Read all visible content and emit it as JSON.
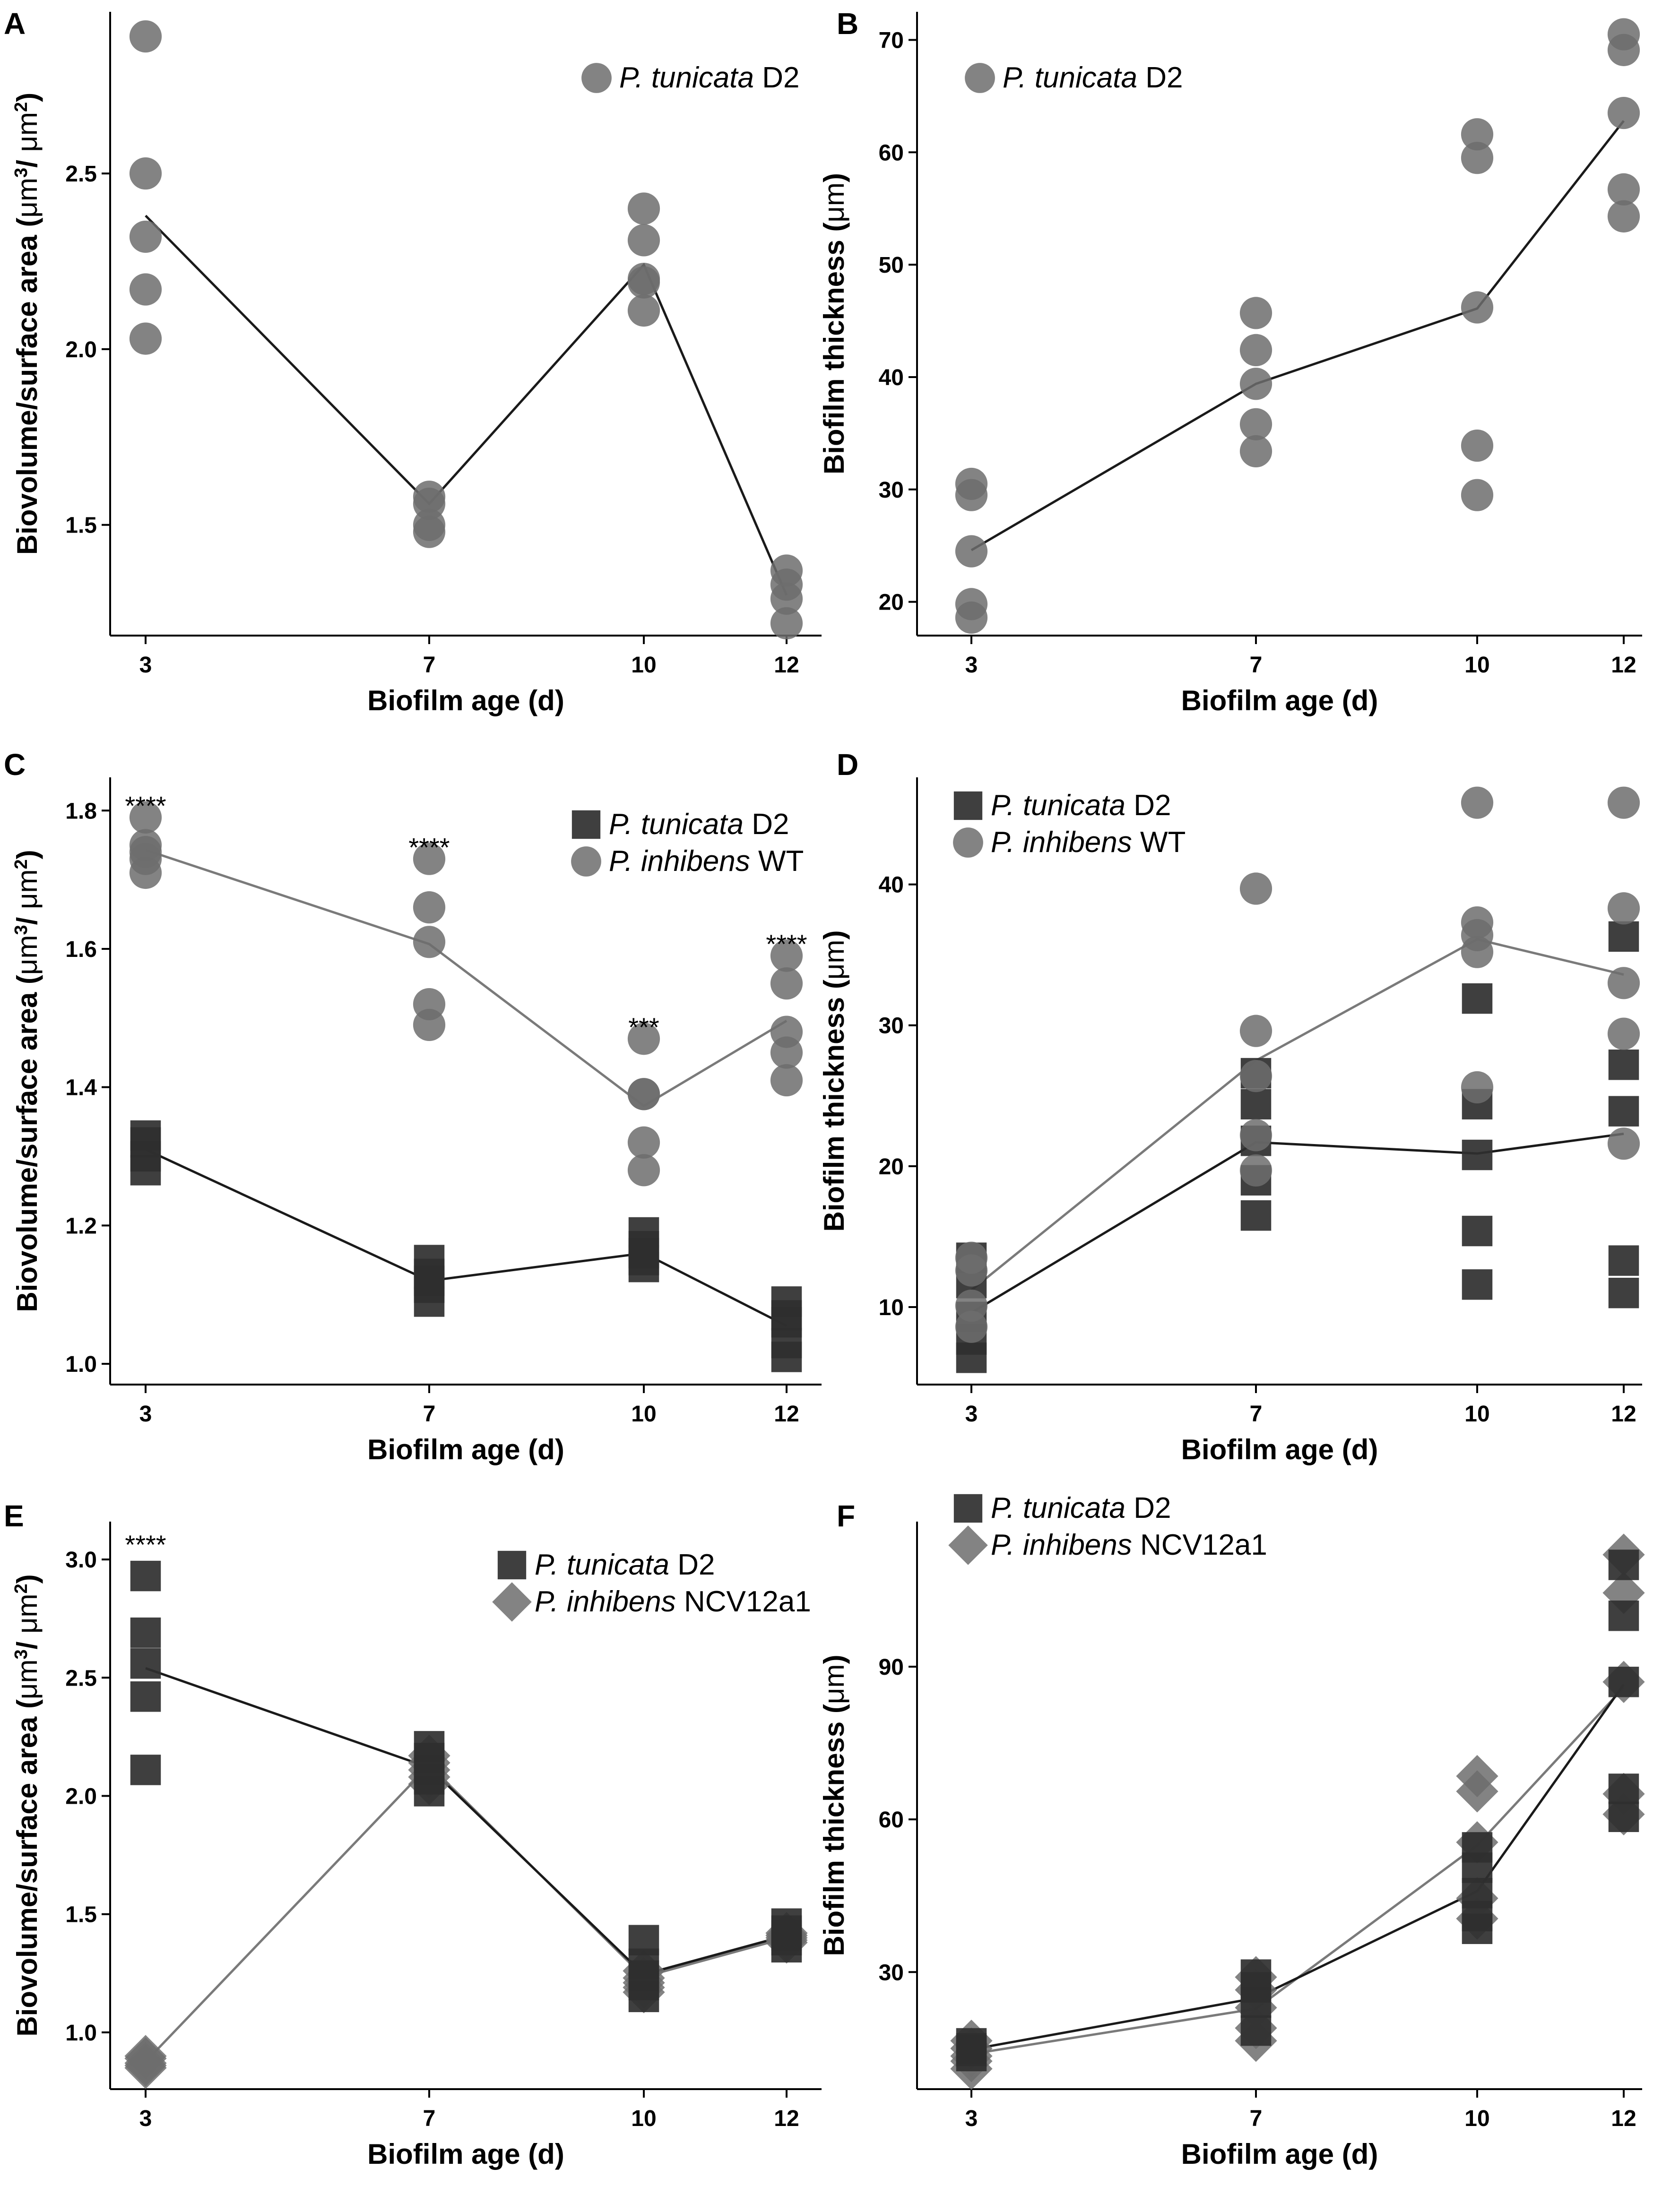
{
  "figure": {
    "colors": {
      "tunicata_square": "#2f2f2f",
      "gray_marker": "#6d6d6d",
      "tunicata_line": "#1a1a1a",
      "inhibens_line": "#7a7a7a"
    }
  },
  "chart_data": [
    {
      "id": "A",
      "panel_label": "A",
      "type": "scatter",
      "xlabel": "Biofilm age (d)",
      "ylabel_parts": [
        "Biovolume/surface area (",
        "μm",
        "3",
        "/ ",
        "μm",
        "2",
        ")"
      ],
      "x_categories": [
        3,
        7,
        10,
        12
      ],
      "ylim": [
        1.185,
        2.96
      ],
      "yticks": [
        1.5,
        2.0,
        2.5
      ],
      "ytick_labels": [
        "1.5",
        "2.0",
        "2.5"
      ],
      "legend": [
        {
          "marker": "circle",
          "name_italic": "P. tunicata",
          "name_rest": " D2"
        }
      ],
      "series": [
        {
          "name": "P. tunicata D2",
          "marker": "circle",
          "color": "#6d6d6d",
          "line_color": "#1a1a1a",
          "points": {
            "3": [
              2.89,
              2.5,
              2.32,
              2.17,
              2.03
            ],
            "7": [
              1.58,
              1.56,
              1.5,
              1.48
            ],
            "10": [
              2.4,
              2.31,
              2.2,
              2.19,
              2.11
            ],
            "12": [
              1.37,
              1.33,
              1.29,
              1.22
            ]
          },
          "means": {
            "3": 2.38,
            "7": 1.56,
            "10": 2.24,
            "12": 1.3
          }
        }
      ],
      "annotations": []
    },
    {
      "id": "B",
      "panel_label": "B",
      "type": "scatter",
      "xlabel": "Biofilm age (d)",
      "ylabel_parts": [
        "Biofilm thickness (",
        "μm",
        "",
        "",
        "",
        "",
        ")"
      ],
      "x_categories": [
        3,
        7,
        10,
        12
      ],
      "ylim": [
        17.0,
        72.5
      ],
      "yticks": [
        20,
        30,
        40,
        50,
        60,
        70
      ],
      "ytick_labels": [
        "20",
        "30",
        "40",
        "50",
        "60",
        "70"
      ],
      "legend": [
        {
          "marker": "circle",
          "name_italic": "P. tunicata",
          "name_rest": " D2"
        }
      ],
      "series": [
        {
          "name": "P. tunicata D2",
          "marker": "circle",
          "color": "#6d6d6d",
          "line_color": "#1a1a1a",
          "points": {
            "3": [
              30.5,
              29.5,
              24.5,
              19.8,
              18.6
            ],
            "7": [
              45.7,
              42.4,
              39.4,
              35.8,
              33.4
            ],
            "10": [
              61.6,
              59.5,
              46.2,
              33.9,
              29.5
            ],
            "12": [
              70.5,
              69.1,
              63.5,
              56.7,
              54.3
            ]
          },
          "means": {
            "3": 24.6,
            "7": 39.4,
            "10": 46.1,
            "12": 62.8
          }
        }
      ],
      "annotations": []
    },
    {
      "id": "C",
      "panel_label": "C",
      "type": "scatter",
      "xlabel": "Biofilm age (d)",
      "ylabel_parts": [
        "Biovolume/surface area (",
        "μm",
        "3",
        "/ ",
        "μm",
        "2",
        ")"
      ],
      "x_categories": [
        3,
        7,
        10,
        12
      ],
      "ylim": [
        0.97,
        1.848
      ],
      "yticks": [
        1.0,
        1.2,
        1.4,
        1.6,
        1.8
      ],
      "ytick_labels": [
        "1.0",
        "1.2",
        "1.4",
        "1.6",
        "1.8"
      ],
      "legend": [
        {
          "marker": "square",
          "name_italic": "P. tunicata",
          "name_rest": " D2"
        },
        {
          "marker": "circle",
          "name_italic": "P. inhibens",
          "name_rest": " WT"
        }
      ],
      "series": [
        {
          "name": "P. tunicata D2",
          "marker": "square",
          "color": "#2f2f2f",
          "line_color": "#1a1a1a",
          "points": {
            "3": [
              1.33,
              1.32,
              1.3,
              1.28
            ],
            "7": [
              1.15,
              1.13,
              1.12,
              1.11,
              1.09
            ],
            "10": [
              1.19,
              1.17,
              1.16,
              1.15,
              1.14
            ],
            "12": [
              1.09,
              1.07,
              1.06,
              1.03,
              1.01
            ]
          },
          "means": {
            "3": 1.31,
            "7": 1.12,
            "10": 1.16,
            "12": 1.055
          }
        },
        {
          "name": "P. inhibens WT",
          "marker": "circle",
          "color": "#6d6d6d",
          "line_color": "#7a7a7a",
          "points": {
            "3": [
              1.79,
              1.75,
              1.74,
              1.73,
              1.71
            ],
            "7": [
              1.73,
              1.66,
              1.61,
              1.52,
              1.49
            ],
            "10": [
              1.47,
              1.39,
              1.39,
              1.32,
              1.28
            ],
            "12": [
              1.59,
              1.55,
              1.48,
              1.45,
              1.41
            ]
          },
          "means": {
            "3": 1.743,
            "7": 1.607,
            "10": 1.373,
            "12": 1.496
          }
        }
      ],
      "annotations": [
        {
          "x": 3,
          "y": 1.806,
          "text": "****"
        },
        {
          "x": 7,
          "y": 1.746,
          "text": "****"
        },
        {
          "x": 10,
          "y": 1.486,
          "text": "***"
        },
        {
          "x": 12,
          "y": 1.606,
          "text": "****"
        }
      ]
    },
    {
      "id": "D",
      "panel_label": "D",
      "type": "scatter",
      "xlabel": "Biofilm age (d)",
      "ylabel_parts": [
        "Biofilm thickness (",
        "μm",
        "",
        "",
        "",
        "",
        ")"
      ],
      "x_categories": [
        3,
        7,
        10,
        12
      ],
      "ylim": [
        4.5,
        47.6
      ],
      "yticks": [
        10,
        20,
        30,
        40
      ],
      "ytick_labels": [
        "10",
        "20",
        "30",
        "40"
      ],
      "legend": [
        {
          "marker": "square",
          "name_italic": "P. tunicata",
          "name_rest": " D2"
        },
        {
          "marker": "circle",
          "name_italic": "P. inhibens",
          "name_rest": " WT"
        }
      ],
      "series": [
        {
          "name": "P. tunicata D2",
          "marker": "square",
          "color": "#2f2f2f",
          "line_color": "#1a1a1a",
          "points": {
            "3": [
              13.5,
              11.7,
              9.3,
              7.7,
              6.4
            ],
            "7": [
              26.6,
              24.4,
              21.8,
              19.0,
              16.5
            ],
            "10": [
              31.9,
              24.4,
              20.8,
              15.4,
              11.6
            ],
            "12": [
              36.3,
              27.2,
              23.9,
              13.3,
              11.0
            ]
          },
          "means": {
            "3": 9.6,
            "7": 21.7,
            "10": 20.9,
            "12": 22.3
          }
        },
        {
          "name": "P. inhibens WT",
          "marker": "circle",
          "color": "#6d6d6d",
          "line_color": "#7a7a7a",
          "points": {
            "3": [
              13.5,
              12.6,
              10.1,
              8.6
            ],
            "7": [
              39.7,
              29.6,
              26.4,
              22.2,
              19.7
            ],
            "10": [
              45.8,
              37.3,
              36.4,
              35.2,
              25.6
            ],
            "12": [
              45.8,
              38.3,
              33.0,
              29.4,
              21.6
            ]
          },
          "means": {
            "3": 11.2,
            "7": 27.5,
            "10": 36.1,
            "12": 33.6
          }
        }
      ],
      "annotations": []
    },
    {
      "id": "E",
      "panel_label": "E",
      "type": "scatter",
      "xlabel": "Biofilm age (d)",
      "ylabel_parts": [
        "Biovolume/surface area (",
        "μm",
        "3",
        "/ ",
        "μm",
        "2",
        ")"
      ],
      "x_categories": [
        3,
        7,
        10,
        12
      ],
      "ylim": [
        0.76,
        3.16
      ],
      "yticks": [
        1.0,
        1.5,
        2.0,
        2.5,
        3.0
      ],
      "ytick_labels": [
        "1.0",
        "1.5",
        "2.0",
        "2.5",
        "3.0"
      ],
      "legend": [
        {
          "marker": "square",
          "name_italic": "P. tunicata",
          "name_rest": " D2"
        },
        {
          "marker": "diamond",
          "name_italic": "P. inhibens",
          "name_rest": " NCV12a1"
        }
      ],
      "series": [
        {
          "name": "P. inhibens NCV12a1",
          "marker": "diamond",
          "color": "#6d6d6d",
          "line_color": "#7a7a7a",
          "points": {
            "3": [
              0.9,
              0.89,
              0.87,
              0.86,
              0.85
            ],
            "7": [
              2.17,
              2.14,
              2.11,
              2.08,
              2.05
            ],
            "10": [
              1.26,
              1.23,
              1.21,
              1.19,
              1.17
            ],
            "12": [
              1.42,
              1.41,
              1.4,
              1.39,
              1.38
            ]
          },
          "means": {
            "3": 0.876,
            "7": 2.13,
            "10": 1.235,
            "12": 1.4
          }
        },
        {
          "name": "P. tunicata D2",
          "marker": "square",
          "color": "#2f2f2f",
          "line_color": "#1a1a1a",
          "points": {
            "3": [
              2.93,
              2.69,
              2.56,
              2.42,
              2.11
            ],
            "7": [
              2.21,
              2.16,
              2.11,
              2.07,
              2.02
            ],
            "10": [
              1.39,
              1.29,
              1.24,
              1.2,
              1.15
            ],
            "12": [
              1.46,
              1.43,
              1.41,
              1.39,
              1.36
            ]
          },
          "means": {
            "3": 2.54,
            "7": 2.12,
            "10": 1.245,
            "12": 1.41
          }
        }
      ],
      "annotations": [
        {
          "x": 3,
          "y": 3.06,
          "text": "****"
        }
      ]
    },
    {
      "id": "F",
      "panel_label": "F",
      "type": "scatter",
      "xlabel": "Biofilm age (d)",
      "ylabel_parts": [
        "Biofilm thickness (",
        "μm",
        "",
        "",
        "",
        "",
        ")"
      ],
      "x_categories": [
        3,
        7,
        10,
        12
      ],
      "ylim": [
        7.0,
        118.5
      ],
      "yticks": [
        30,
        60,
        90
      ],
      "ytick_labels": [
        "30",
        "60",
        "90"
      ],
      "legend": [
        {
          "marker": "square",
          "name_italic": "P. tunicata",
          "name_rest": " D2"
        },
        {
          "marker": "diamond",
          "name_italic": "P. inhibens",
          "name_rest": " NCV12a1"
        }
      ],
      "series": [
        {
          "name": "P. inhibens NCV12a1",
          "marker": "diamond",
          "color": "#6d6d6d",
          "line_color": "#7a7a7a",
          "points": {
            "3": [
              16.5,
              15.0,
              13.5,
              12.5,
              11.0
            ],
            "7": [
              29.0,
              26.5,
              23.0,
              19.0,
              16.5
            ],
            "10": [
              68.5,
              65.5,
              55.5,
              44.5,
              40.5
            ],
            "12": [
              112.0,
              104.5,
              87.0,
              65.0,
              61.0
            ]
          },
          "means": {
            "3": 13.9,
            "7": 22.8,
            "10": 54.9,
            "12": 85.9
          }
        },
        {
          "name": "P. tunicata D2",
          "marker": "square",
          "color": "#2f2f2f",
          "line_color": "#1a1a1a",
          "points": {
            "3": [
              16.0,
              15.0,
              14.5,
              13.5
            ],
            "7": [
              29.5,
              27.0,
              24.0,
              18.5
            ],
            "10": [
              54.5,
              50.5,
              45.5,
              41.0,
              38.5
            ],
            "12": [
              110.0,
              100.0,
              87.0,
              66.0,
              60.5
            ]
          },
          "means": {
            "3": 14.8,
            "7": 24.9,
            "10": 45.9,
            "12": 86.5
          }
        }
      ],
      "annotations": []
    }
  ]
}
